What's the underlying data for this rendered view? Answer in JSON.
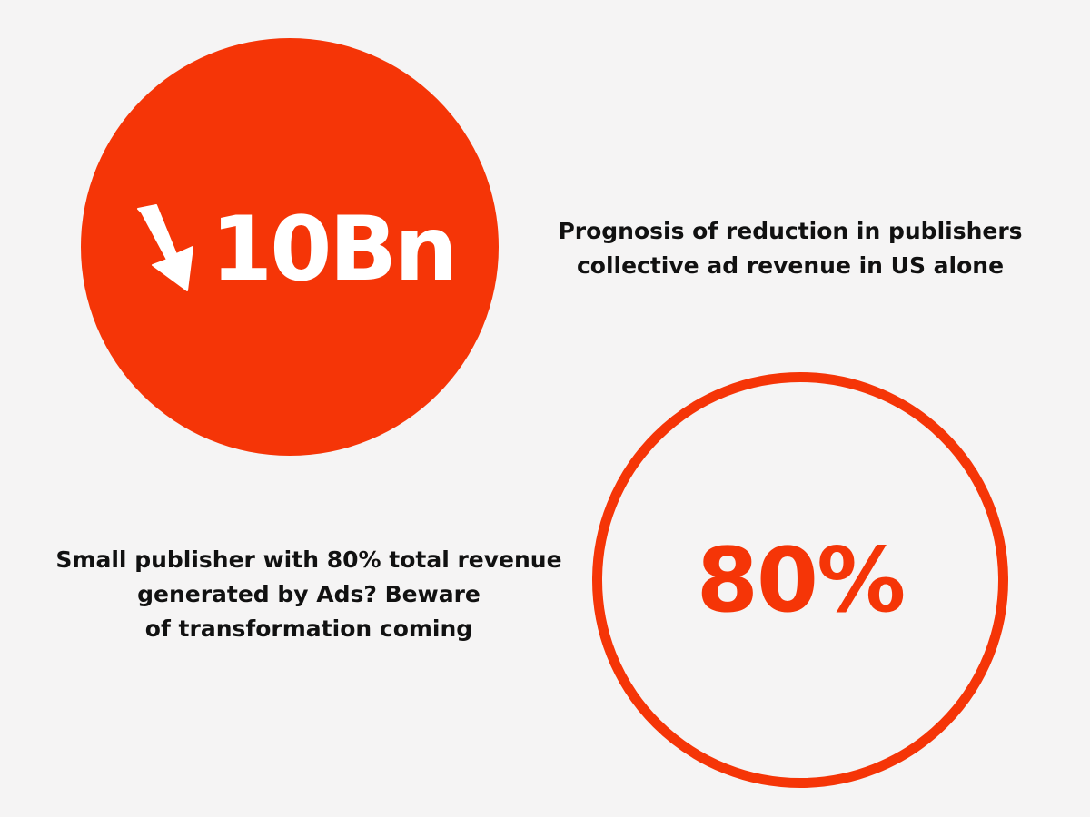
{
  "colors": {
    "background": "#f5f4f4",
    "accent": "#f53507",
    "text_dark": "#111111",
    "text_light": "#ffffff"
  },
  "top_stat": {
    "icon": "down-arrow-icon",
    "value": "10Bn",
    "caption": "Prognosis of reduction in publishers\ncollective ad revenue in US alone"
  },
  "bottom_stat": {
    "value": "80%",
    "caption": "Small publisher with 80% total revenue\ngenerated by Ads? Beware\nof transformation coming"
  }
}
